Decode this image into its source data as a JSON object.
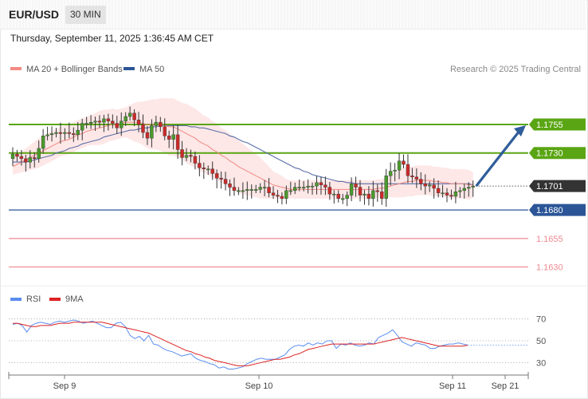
{
  "header": {
    "symbol": "EUR/USD",
    "timeframe": "30 MIN",
    "datetime": "Thursday, September 11, 2025 1:36:45 AM CET"
  },
  "colors": {
    "up": "#4a9a2b",
    "down": "#cc2a2a",
    "ma20": "#f28b82",
    "band_fill": "#fde3e3",
    "ma50": "#5a6fa8",
    "res_green": "#5aa513",
    "support_blue": "#2b5597",
    "support_red": "#ee8a92",
    "rsi": "#5b8def",
    "rsi_ma": "#dd2222",
    "arrow": "#2f5d9a",
    "price_tag": "#333333"
  },
  "chart_data": [
    {
      "type": "candlestick",
      "legend": [
        {
          "label": "MA 20 + Bollinger Bands",
          "color": "#f28b82"
        },
        {
          "label": "MA 50",
          "color": "#2b5597"
        }
      ],
      "credit": "Research © 2025 Trading Central",
      "x_ticks": [
        "Sep 9",
        "Sep 10",
        "Sep 11",
        "Sep 21"
      ],
      "y_range": [
        1.1615,
        1.179
      ],
      "current_price": "1.1701",
      "levels": [
        {
          "value": 1.1755,
          "label": "1.1755",
          "kind": "resistance"
        },
        {
          "value": 1.173,
          "label": "1.1730",
          "kind": "resistance"
        },
        {
          "value": 1.168,
          "label": "1.1680",
          "kind": "support"
        },
        {
          "value": 1.1655,
          "label": "1.1655",
          "kind": "support"
        },
        {
          "value": 1.163,
          "label": "1.1630",
          "kind": "support"
        }
      ],
      "target_projection": {
        "from": 1.1701,
        "to": 1.1755
      },
      "closes": [
        1.1729,
        1.1727,
        1.1725,
        1.1722,
        1.1726,
        1.1725,
        1.1734,
        1.1745,
        1.1746,
        1.1747,
        1.1748,
        1.1747,
        1.1748,
        1.1747,
        1.1746,
        1.175,
        1.1756,
        1.1756,
        1.1757,
        1.1758,
        1.1757,
        1.176,
        1.1758,
        1.1756,
        1.1752,
        1.1758,
        1.1762,
        1.1765,
        1.1759,
        1.1755,
        1.1748,
        1.1743,
        1.1754,
        1.1757,
        1.1753,
        1.1745,
        1.1742,
        1.1746,
        1.1733,
        1.1726,
        1.1728,
        1.1727,
        1.1721,
        1.1717,
        1.1716,
        1.1716,
        1.1712,
        1.1708,
        1.1707,
        1.1703,
        1.17,
        1.1697,
        1.1697,
        1.1697,
        1.1698,
        1.1698,
        1.1698,
        1.17,
        1.17,
        1.1695,
        1.1693,
        1.1692,
        1.169,
        1.1697,
        1.1697,
        1.17,
        1.17,
        1.17,
        1.1701,
        1.1701,
        1.1704,
        1.1702,
        1.17,
        1.1694,
        1.1694,
        1.169,
        1.169,
        1.1693,
        1.1703,
        1.17,
        1.1693,
        1.1694,
        1.169,
        1.1697,
        1.1696,
        1.169,
        1.171,
        1.1714,
        1.1715,
        1.1723,
        1.172,
        1.171,
        1.1709,
        1.1707,
        1.1703,
        1.1701,
        1.1702,
        1.1699,
        1.1695,
        1.1695,
        1.1693,
        1.1692,
        1.1696,
        1.1697,
        1.1699,
        1.17,
        1.1701
      ],
      "ma20": [
        1.1718,
        1.172,
        1.1722,
        1.1724,
        1.1726,
        1.1728,
        1.173,
        1.1732,
        1.1734,
        1.1736,
        1.1738,
        1.174,
        1.1741,
        1.1742,
        1.1744,
        1.1746,
        1.1747,
        1.1749,
        1.175,
        1.1751,
        1.1752,
        1.1753,
        1.1754,
        1.1755,
        1.1755,
        1.1756,
        1.1757,
        1.1757,
        1.1757,
        1.1757,
        1.1756,
        1.1755,
        1.1755,
        1.1755,
        1.1755,
        1.1754,
        1.1753,
        1.1753,
        1.1751,
        1.1749,
        1.1747,
        1.1745,
        1.1743,
        1.174,
        1.1738,
        1.1736,
        1.1733,
        1.1731,
        1.1728,
        1.1726,
        1.1723,
        1.1721,
        1.1718,
        1.1716,
        1.1714,
        1.1712,
        1.171,
        1.1708,
        1.1706,
        1.1704,
        1.1702,
        1.1701,
        1.17,
        1.1699,
        1.1698,
        1.1698,
        1.1698,
        1.1698,
        1.1698,
        1.1698,
        1.1698,
        1.1698,
        1.1698,
        1.1698,
        1.1698,
        1.1698,
        1.1698,
        1.1698,
        1.1698,
        1.1698,
        1.1698,
        1.1698,
        1.1698,
        1.1698,
        1.1699,
        1.1699,
        1.17,
        1.1701,
        1.1702,
        1.1703,
        1.1704,
        1.1705,
        1.1705,
        1.1706,
        1.1706,
        1.1706,
        1.1706,
        1.1705,
        1.1705,
        1.1704,
        1.1704,
        1.1703,
        1.1703,
        1.1703,
        1.1703,
        1.1702,
        1.1702
      ],
      "ma50": [
        1.1722,
        1.1722,
        1.1722,
        1.1722,
        1.1723,
        1.1724,
        1.1725,
        1.1726,
        1.1727,
        1.1728,
        1.173,
        1.1731,
        1.1732,
        1.1734,
        1.1735,
        1.1736,
        1.1738,
        1.1739,
        1.174,
        1.1741,
        1.1742,
        1.1744,
        1.1745,
        1.1746,
        1.1747,
        1.1748,
        1.1749,
        1.175,
        1.175,
        1.1751,
        1.1752,
        1.1752,
        1.1753,
        1.1753,
        1.1754,
        1.1754,
        1.1754,
        1.1754,
        1.1754,
        1.1754,
        1.1754,
        1.1753,
        1.1753,
        1.1752,
        1.1752,
        1.1751,
        1.175,
        1.1749,
        1.1748,
        1.1747,
        1.1745,
        1.1744,
        1.1742,
        1.174,
        1.1739,
        1.1737,
        1.1735,
        1.1733,
        1.1731,
        1.1729,
        1.1727,
        1.1725,
        1.1723,
        1.1721,
        1.1719,
        1.1717,
        1.1716,
        1.1714,
        1.1713,
        1.1711,
        1.171,
        1.1709,
        1.1708,
        1.1707,
        1.1706,
        1.1705,
        1.1705,
        1.1704,
        1.1704,
        1.1703,
        1.1703,
        1.1703,
        1.1703,
        1.1703,
        1.1703,
        1.1703,
        1.1703,
        1.1703,
        1.1703,
        1.1703,
        1.1703,
        1.1703,
        1.1703,
        1.1703,
        1.1703,
        1.1703,
        1.1703,
        1.1703,
        1.1703,
        1.1703,
        1.1703,
        1.1703,
        1.1703,
        1.1703,
        1.1703,
        1.1703,
        1.1702
      ],
      "band_width": [
        0.0007,
        0.0008,
        0.0009,
        0.001,
        0.0011,
        0.0012,
        0.0013,
        0.0013,
        0.0013,
        0.0013,
        0.0013,
        0.0013,
        0.0013,
        0.0013,
        0.0013,
        0.0013,
        0.0013,
        0.0013,
        0.0013,
        0.0014,
        0.0015,
        0.0015,
        0.0014,
        0.0014,
        0.0013,
        0.0013,
        0.0013,
        0.0015,
        0.0017,
        0.0018,
        0.0019,
        0.0021,
        0.0022,
        0.0022,
        0.0023,
        0.0024,
        0.0025,
        0.0025,
        0.0025,
        0.0025,
        0.0026,
        0.0026,
        0.0026,
        0.0026,
        0.0025,
        0.0025,
        0.0025,
        0.0025,
        0.0024,
        0.0024,
        0.0024,
        0.0023,
        0.0023,
        0.0022,
        0.0021,
        0.002,
        0.0019,
        0.0018,
        0.0016,
        0.0014,
        0.0012,
        0.0011,
        0.001,
        0.0008,
        0.0008,
        0.0008,
        0.0008,
        0.0008,
        0.0008,
        0.0008,
        0.0008,
        0.0008,
        0.0008,
        0.0008,
        0.0008,
        0.0008,
        0.0008,
        0.0008,
        0.0008,
        0.0008,
        0.0008,
        0.0008,
        0.0008,
        0.0008,
        0.0008,
        0.0008,
        0.0008,
        0.001,
        0.0011,
        0.0012,
        0.0013,
        0.0013,
        0.0013,
        0.0013,
        0.0013,
        0.0013,
        0.0013,
        0.0013,
        0.0013,
        0.0013,
        0.0013,
        0.0013,
        0.0013,
        0.0013,
        0.0013,
        0.0013,
        0.0011
      ]
    },
    {
      "type": "line",
      "legend": [
        {
          "label": "RSI",
          "color": "#5b8def"
        },
        {
          "label": "9MA",
          "color": "#dd2222"
        }
      ],
      "y_range": [
        20,
        80
      ],
      "y_ticks": [
        "70",
        "50",
        "30"
      ],
      "series": [
        {
          "name": "RSI",
          "values": [
            65,
            66,
            64,
            58,
            64,
            66,
            67,
            66,
            65,
            67,
            68,
            67,
            68,
            69,
            68,
            66,
            67,
            68,
            66,
            64,
            62,
            62,
            66,
            67,
            63,
            55,
            52,
            54,
            50,
            55,
            47,
            46,
            43,
            41,
            40,
            38,
            36,
            37,
            38,
            34,
            32,
            31,
            29,
            28,
            25,
            26,
            24,
            24,
            25,
            26,
            29,
            31,
            33,
            34,
            33,
            33,
            33,
            35,
            37,
            42,
            45,
            46,
            45,
            48,
            46,
            48,
            47,
            50,
            50,
            43,
            47,
            46,
            48,
            46,
            45,
            46,
            48,
            47,
            53,
            55,
            57,
            60,
            55,
            49,
            47,
            45,
            48,
            47,
            46,
            43,
            43,
            45,
            46,
            47,
            47,
            48,
            47,
            46
          ]
        },
        {
          "name": "9MA",
          "values": [
            66,
            66,
            65,
            64,
            63,
            63,
            64,
            64,
            64,
            65,
            66,
            66,
            66,
            67,
            67,
            67,
            67,
            67,
            67,
            67,
            66,
            65,
            64,
            63,
            62,
            61,
            60,
            59,
            58,
            57,
            55,
            53,
            51,
            49,
            47,
            45,
            43,
            41,
            40,
            38,
            37,
            35,
            34,
            32,
            31,
            30,
            29,
            28,
            27,
            27,
            27,
            28,
            29,
            30,
            31,
            32,
            33,
            33,
            34,
            35,
            37,
            38,
            40,
            42,
            43,
            44,
            45,
            46,
            47,
            47,
            47,
            47,
            47,
            47,
            47,
            47,
            47,
            47,
            48,
            49,
            50,
            51,
            52,
            53,
            52,
            51,
            50,
            49,
            48,
            47,
            46,
            45,
            45,
            45,
            45,
            45,
            45,
            46
          ]
        }
      ]
    }
  ]
}
